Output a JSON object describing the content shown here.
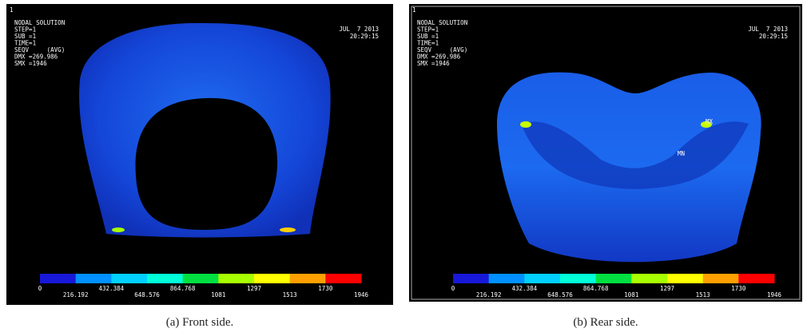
{
  "panels": [
    {
      "id_label": "1",
      "header": [
        "NODAL SOLUTION",
        "STEP=1",
        "SUB =1",
        "TIME=1",
        "SEQV     (AVG)",
        "DMX =269.986",
        "SMX =1946"
      ],
      "date": "JUL  7 2013",
      "time": "20:29:15",
      "markers": [],
      "legend_top": [
        "0",
        "432.384",
        "864.768",
        "1297",
        "1730"
      ],
      "legend_bottom": [
        "216.192",
        "648.576",
        "1081",
        "1513",
        "1946"
      ],
      "caption": "(a) Front side."
    },
    {
      "id_label": "1",
      "header": [
        "NODAL SOLUTION",
        "STEP=1",
        "SUB =1",
        "TIME=1",
        "SEQV     (AVG)",
        "DMX =269.986",
        "SMX =1946"
      ],
      "date": "JUL  7 2013",
      "time": "20:29:15",
      "markers": [
        "MX",
        "MN"
      ],
      "legend_top": [
        "0",
        "432.384",
        "864.768",
        "1297",
        "1730"
      ],
      "legend_bottom": [
        "216.192",
        "648.576",
        "1081",
        "1513",
        "1946"
      ],
      "caption": "(b) Rear side."
    }
  ]
}
